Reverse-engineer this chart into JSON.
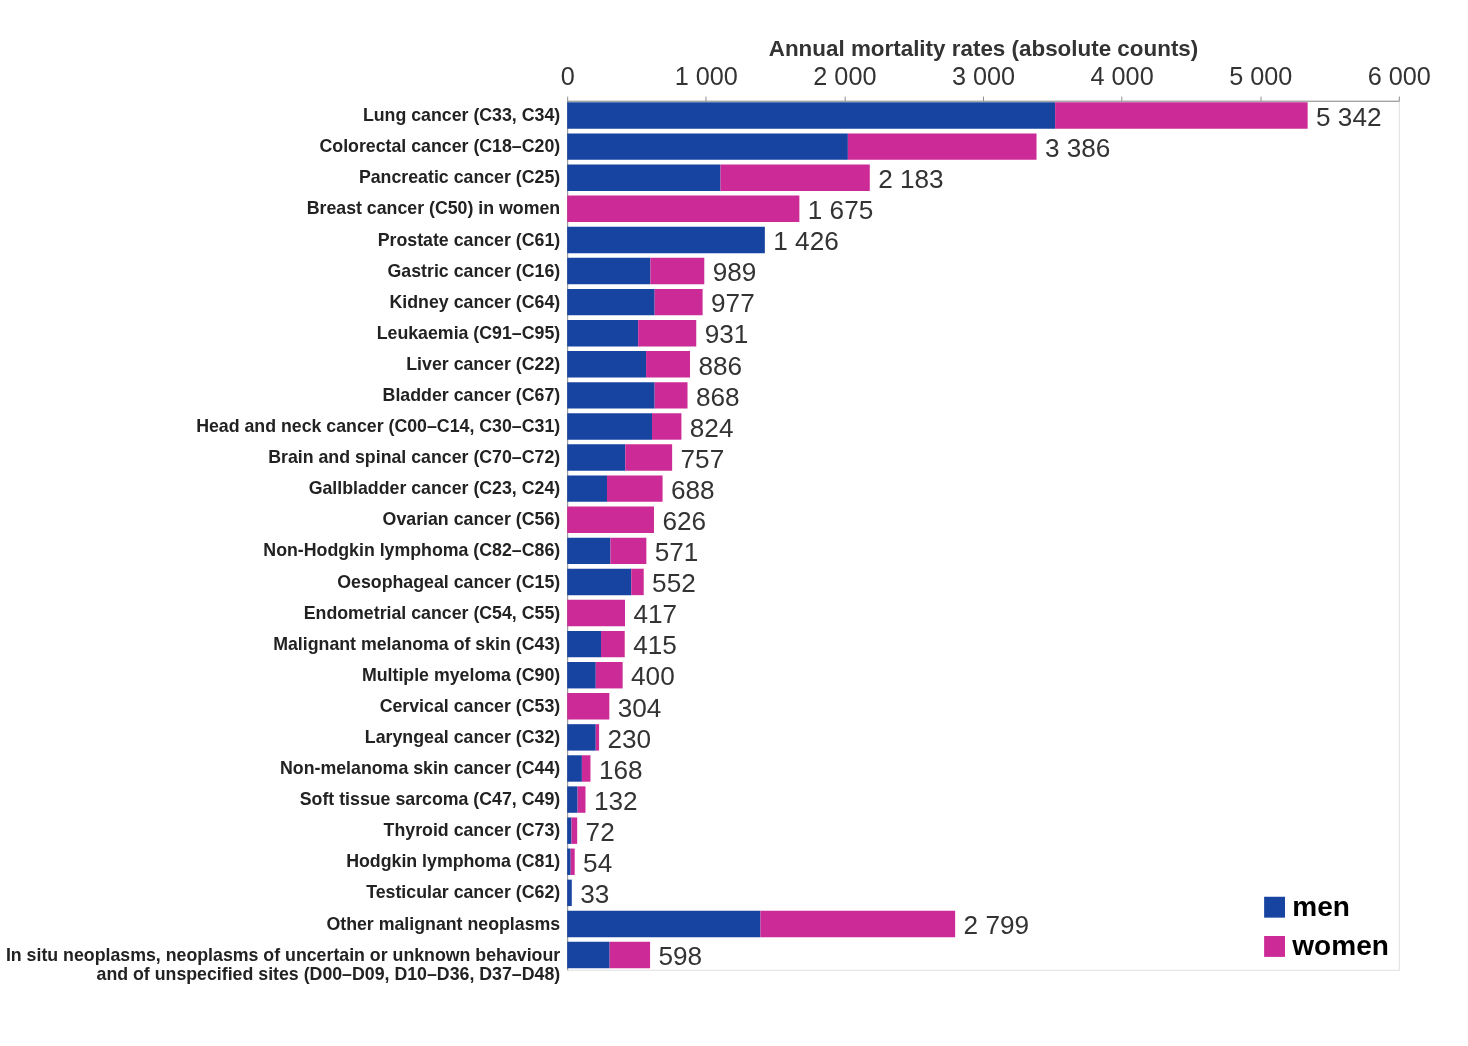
{
  "chart_data": {
    "type": "bar",
    "orientation": "horizontal",
    "stacked": true,
    "xlabel": "Annual mortality rates (absolute counts)",
    "categories": [
      "Lung cancer (C33, C34)",
      "Colorectal cancer (C18–C20)",
      "Pancreatic cancer (C25)",
      "Breast cancer (C50) in women",
      "Prostate cancer (C61)",
      "Gastric cancer (C16)",
      "Kidney cancer (C64)",
      "Leukaemia (C91–C95)",
      "Liver cancer (C22)",
      "Bladder cancer (C67)",
      "Head and neck cancer (C00–C14, C30–C31)",
      "Brain and spinal cancer (C70–C72)",
      "Gallbladder cancer (C23, C24)",
      "Ovarian cancer (C56)",
      "Non-Hodgkin lymphoma (C82–C86)",
      "Oesophageal cancer (C15)",
      "Endometrial cancer (C54, C55)",
      "Malignant melanoma of skin (C43)",
      "Multiple myeloma (C90)",
      "Cervical cancer (C53)",
      "Laryngeal cancer (C32)",
      "Non-melanoma skin cancer (C44)",
      "Soft tissue sarcoma (C47, C49)",
      "Thyroid cancer (C73)",
      "Hodgkin lymphoma (C81)",
      "Testicular cancer (C62)",
      "Other malignant neoplasms",
      "In situ neoplasms, neoplasms of uncertain or unknown behaviour\nand of unspecified sites  (D00–D09, D10–D36, D37–D48)"
    ],
    "series": [
      {
        "name": "men",
        "color": "#1744a0",
        "values": [
          3520,
          2025,
          1106,
          0,
          1426,
          600,
          631,
          512,
          569,
          631,
          612,
          419,
          287,
          0,
          312,
          462,
          0,
          244,
          206,
          0,
          206,
          106,
          75,
          31,
          25,
          33,
          1394,
          306
        ]
      },
      {
        "name": "women",
        "color": "#cc2a96",
        "values": [
          1822,
          1361,
          1077,
          1675,
          0,
          389,
          346,
          419,
          317,
          237,
          212,
          338,
          401,
          626,
          259,
          90,
          417,
          171,
          194,
          304,
          24,
          62,
          57,
          41,
          29,
          0,
          1405,
          292
        ]
      }
    ],
    "totals": [
      "5 342",
      "3 386",
      "2 183",
      "1 675",
      "1 426",
      "989",
      "977",
      "931",
      "886",
      "868",
      "824",
      "757",
      "688",
      "626",
      "571",
      "552",
      "417",
      "415",
      "400",
      "304",
      "230",
      "168",
      "132",
      "72",
      "54",
      "33",
      "2 799",
      "598"
    ],
    "xlim": [
      0,
      6000
    ],
    "xticks": [
      0,
      {
        "value": 1000,
        "label": "1 000"
      },
      {
        "value": 2000,
        "label": "2 000"
      },
      {
        "value": 3000,
        "label": "3 000"
      },
      {
        "value": 4000,
        "label": "4 000"
      },
      {
        "value": 5000,
        "label": "5 000"
      },
      {
        "value": 6000,
        "label": "6 000"
      }
    ],
    "grid": false,
    "legend": "bottom right"
  }
}
